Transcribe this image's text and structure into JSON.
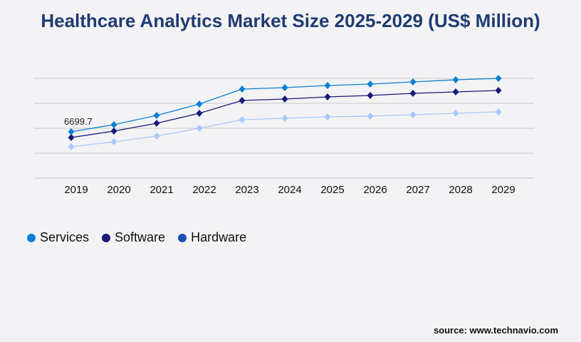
{
  "title": "Healthcare Analytics Market Size 2025-2029 (US$ Million)",
  "source": "source: www.technavio.com",
  "chart_data": {
    "type": "line",
    "title": "Healthcare Analytics Market Size 2025-2029 (US$ Million)",
    "categories": [
      "2019",
      "2020",
      "2021",
      "2022",
      "2023",
      "2024",
      "2025",
      "2026",
      "2027",
      "2028",
      "2029"
    ],
    "ylim": [
      0,
      14400
    ],
    "grid": true,
    "legend_position": "bottom-left",
    "series": [
      {
        "name": "Services",
        "color": "#0a7fd4",
        "values": [
          6699.7,
          7715,
          9051,
          10697,
          12857,
          13063,
          13371,
          13577,
          13886,
          14194,
          14400
        ]
      },
      {
        "name": "Software",
        "color": "#1a1a7a",
        "values": [
          5863,
          6789,
          7920,
          9360,
          11211,
          11417,
          11726,
          11931,
          12240,
          12446,
          12651
        ]
      },
      {
        "name": "Hardware",
        "color": "#a8c8f8",
        "legend_color": "#1f4fb0",
        "values": [
          4526,
          5246,
          6069,
          7200,
          8434,
          8640,
          8846,
          8949,
          9154,
          9360,
          9566
        ]
      }
    ],
    "annotations": [
      {
        "series": "Services",
        "category": "2019",
        "text": "6699.7"
      }
    ]
  }
}
